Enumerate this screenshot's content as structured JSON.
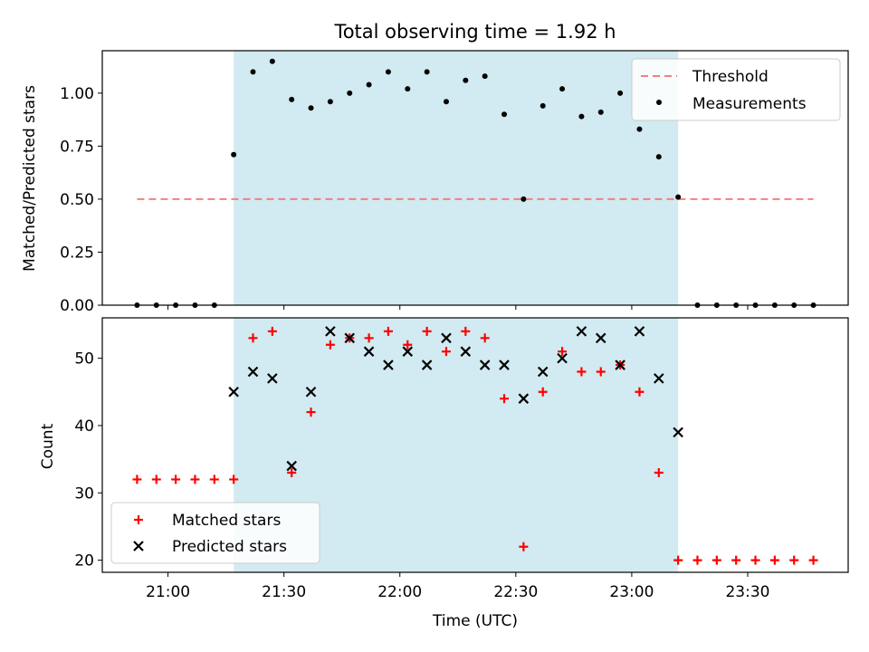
{
  "chart_data": {
    "type": "scatter",
    "title": "Total observing time = 1.92 h",
    "xlabel": "Time (UTC)",
    "x_tick_labels": [
      "21:00",
      "21:30",
      "22:00",
      "22:30",
      "23:00",
      "23:30"
    ],
    "x_ticks": [
      "21:00",
      "21:30",
      "22:00",
      "22:30",
      "23:00",
      "23:30"
    ],
    "xlim": [
      "20:43",
      "23:56"
    ],
    "highlight_span": [
      "21:17",
      "23:12"
    ],
    "highlight_color": "#add8e6",
    "panels": [
      {
        "ylabel": "Matched/Predicted stars",
        "ylim": [
          0,
          1.2
        ],
        "y_ticks": [
          0,
          0.25,
          0.5,
          0.75,
          1.0
        ],
        "y_tick_labels": [
          "0.00",
          "0.25",
          "0.50",
          "0.75",
          "1.00"
        ],
        "legend": {
          "position": "upper right",
          "entries": [
            "Threshold",
            "Measurements"
          ]
        },
        "series": [
          {
            "name": "Threshold",
            "kind": "dashed-line",
            "color": "#f08080",
            "x": [
              "20:52",
              "23:47"
            ],
            "y": [
              0.5,
              0.5
            ]
          },
          {
            "name": "Measurements",
            "kind": "dot",
            "color": "#000000",
            "x": [
              "20:52",
              "20:57",
              "21:02",
              "21:07",
              "21:12",
              "21:17",
              "21:22",
              "21:27",
              "21:32",
              "21:37",
              "21:42",
              "21:47",
              "21:52",
              "21:57",
              "22:02",
              "22:07",
              "22:12",
              "22:17",
              "22:22",
              "22:27",
              "22:32",
              "22:37",
              "22:42",
              "22:47",
              "22:52",
              "22:57",
              "23:02",
              "23:07",
              "23:12",
              "23:17",
              "23:22",
              "23:27",
              "23:32",
              "23:37",
              "23:42",
              "23:47"
            ],
            "y": [
              0,
              0,
              0,
              0,
              0,
              0.71,
              1.1,
              1.15,
              0.97,
              0.93,
              0.96,
              1.0,
              1.04,
              1.1,
              1.02,
              1.1,
              0.96,
              1.06,
              1.08,
              0.9,
              0.5,
              0.94,
              1.02,
              0.89,
              0.91,
              1.0,
              0.83,
              0.7,
              0.51,
              0,
              0,
              0,
              0,
              0,
              0,
              0
            ]
          }
        ]
      },
      {
        "ylabel": "Count",
        "ylim": [
          18.2,
          56.0
        ],
        "y_ticks": [
          20,
          30,
          40,
          50
        ],
        "y_tick_labels": [
          "20",
          "30",
          "40",
          "50"
        ],
        "legend": {
          "position": "lower left",
          "entries": [
            "Matched stars",
            "Predicted stars"
          ]
        },
        "series": [
          {
            "name": "Matched stars",
            "kind": "plus",
            "color": "#ff0000",
            "x": [
              "20:52",
              "20:57",
              "21:02",
              "21:07",
              "21:12",
              "21:17",
              "21:22",
              "21:27",
              "21:32",
              "21:37",
              "21:42",
              "21:47",
              "21:52",
              "21:57",
              "22:02",
              "22:07",
              "22:12",
              "22:17",
              "22:22",
              "22:27",
              "22:32",
              "22:37",
              "22:42",
              "22:47",
              "22:52",
              "22:57",
              "23:02",
              "23:07",
              "23:12",
              "23:17",
              "23:22",
              "23:27",
              "23:32",
              "23:37",
              "23:42",
              "23:47"
            ],
            "y": [
              32,
              32,
              32,
              32,
              32,
              32,
              53,
              54,
              33,
              42,
              52,
              53,
              53,
              54,
              52,
              54,
              51,
              54,
              53,
              44,
              22,
              45,
              51,
              48,
              48,
              49,
              45,
              33,
              20,
              20,
              20,
              20,
              20,
              20,
              20,
              20
            ]
          },
          {
            "name": "Predicted stars",
            "kind": "x",
            "color": "#000000",
            "x": [
              "21:17",
              "21:22",
              "21:27",
              "21:32",
              "21:37",
              "21:42",
              "21:47",
              "21:52",
              "21:57",
              "22:02",
              "22:07",
              "22:12",
              "22:17",
              "22:22",
              "22:27",
              "22:32",
              "22:37",
              "22:42",
              "22:47",
              "22:52",
              "22:57",
              "23:02",
              "23:07",
              "23:12"
            ],
            "y": [
              45,
              48,
              47,
              34,
              45,
              54,
              53,
              51,
              49,
              51,
              49,
              53,
              51,
              49,
              49,
              44,
              48,
              50,
              54,
              53,
              49,
              54,
              47,
              39
            ]
          }
        ]
      }
    ]
  }
}
